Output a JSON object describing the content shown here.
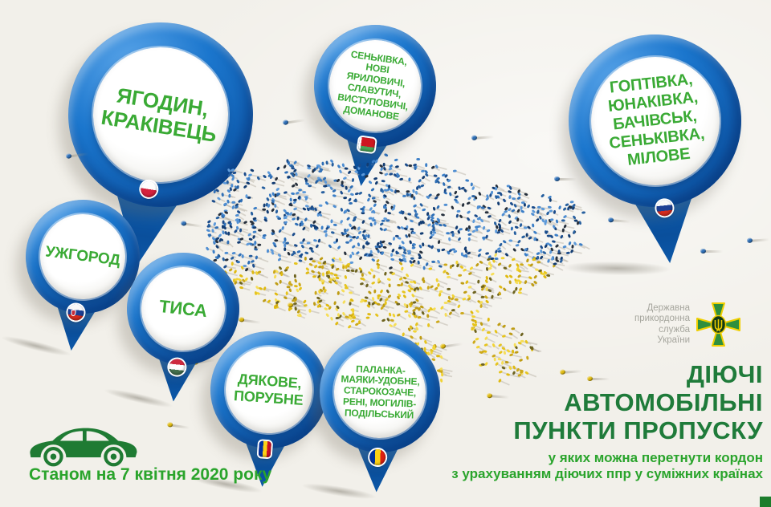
{
  "infographic": {
    "background_color": "#f2f0ea",
    "pins": [
      {
        "name": "yahodyn-krakivets",
        "label": "ЯГОДИН,\nКРАКІВЕЦЬ",
        "flag": "poland"
      },
      {
        "name": "senkivka-group",
        "label": "СЕНЬКІВКА,\nНОВІ ЯРИЛОВИЧІ,\nСЛАВУТИЧ,\nВИСТУПОВИЧІ,\nДОМАНОВЕ",
        "flag": "belarus"
      },
      {
        "name": "hoptivka-group",
        "label": "ГОПТІВКА,\nЮНАКІВКА,\nБАЧІВСЬК,\nСЕНЬКІВКА,\nМІЛОВЕ",
        "flag": "russia"
      },
      {
        "name": "uzhhorod",
        "label": "УЖГОРОД",
        "flag": "slovakia"
      },
      {
        "name": "tysa",
        "label": "ТИСА",
        "flag": "hungary"
      },
      {
        "name": "dyakove-porubne",
        "label": "ДЯКОВЕ,\nПОРУБНЕ",
        "flag": "romania"
      },
      {
        "name": "palanka-group",
        "label": "ПАЛАНКА-\nМАЯКИ-УДОБНЕ,\nСТАРОКОЗАЧЕ,\nРЕНІ, МОГИЛІВ-\nПОДІЛЬСЬКИЙ",
        "flag": "moldova"
      }
    ],
    "status_note": "Станом на 7 квітня 2020 року",
    "title_lines": [
      "ДІЮЧІ",
      "АВТОМОБІЛЬНІ",
      "ПУНКТИ ПРОПУСКУ"
    ],
    "subtitle_lines": [
      "у яких можна перетнути кордон",
      "з урахуванням діючих ппр у суміжних країнах"
    ],
    "agency": {
      "name_lines": [
        "Державна",
        "прикордонна",
        "служба",
        "України"
      ]
    },
    "map_subject": "Мапа України з людей у синьому та жовтому",
    "colors": {
      "pin_blue": "#1372c9",
      "label_green": "#3aaa35",
      "title_green": "#1f7b3a",
      "subtitle_green": "#2aa42c",
      "crowd_blue": "#2f6fb6",
      "crowd_yellow": "#e0bb12"
    }
  }
}
